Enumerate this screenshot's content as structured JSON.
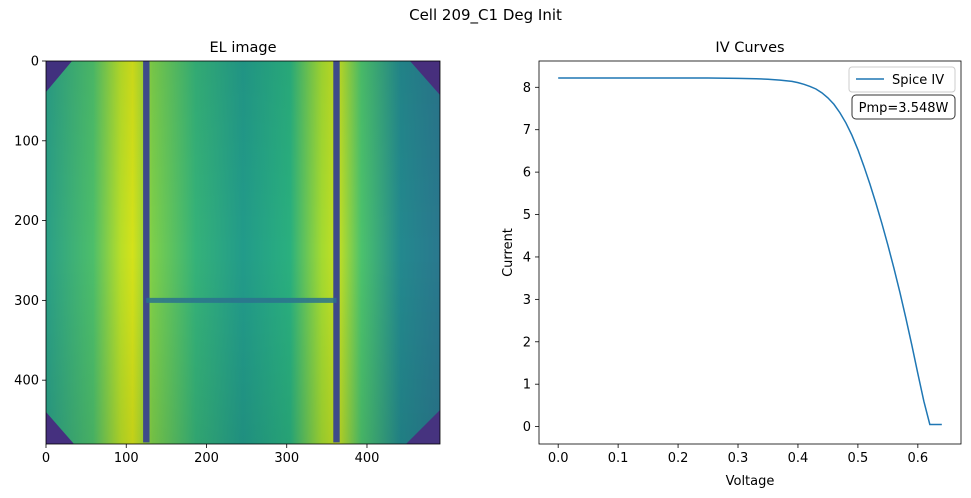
{
  "figure": {
    "title": "Cell 209_C1 Deg Init"
  },
  "chart_data": [
    {
      "type": "heatmap",
      "title": "EL image",
      "xlabel": "",
      "ylabel": "",
      "x_ticks": [
        0,
        100,
        200,
        300,
        400
      ],
      "y_ticks": [
        0,
        100,
        200,
        300,
        400
      ],
      "xlim": [
        0,
        491
      ],
      "ylim": [
        480,
        0
      ],
      "colormap": "viridis",
      "busbar_columns": [
        125,
        362
      ],
      "crack_row": 300
    },
    {
      "type": "line",
      "title": "IV Curves",
      "xlabel": "Voltage",
      "ylabel": "Current",
      "xlim": [
        -0.032,
        0.672
      ],
      "ylim": [
        -0.41,
        8.62
      ],
      "x_ticks": [
        "0.0",
        "0.1",
        "0.2",
        "0.3",
        "0.4",
        "0.5",
        "0.6"
      ],
      "y_ticks": [
        "0",
        "1",
        "2",
        "3",
        "4",
        "5",
        "6",
        "7",
        "8"
      ],
      "legend_position": "top-right",
      "annotation": "Pmp=3.548W",
      "series": [
        {
          "name": "Spice IV",
          "color": "#1f77b4",
          "x": [
            0.0,
            0.05,
            0.1,
            0.15,
            0.2,
            0.25,
            0.3,
            0.33,
            0.35,
            0.37,
            0.39,
            0.4,
            0.41,
            0.42,
            0.43,
            0.44,
            0.45,
            0.46,
            0.47,
            0.48,
            0.49,
            0.5,
            0.51,
            0.52,
            0.53,
            0.54,
            0.55,
            0.56,
            0.57,
            0.58,
            0.59,
            0.6,
            0.61,
            0.62,
            0.628,
            0.64
          ],
          "y": [
            8.22,
            8.22,
            8.22,
            8.22,
            8.22,
            8.22,
            8.21,
            8.2,
            8.19,
            8.17,
            8.14,
            8.11,
            8.07,
            8.02,
            7.96,
            7.87,
            7.75,
            7.6,
            7.4,
            7.16,
            6.87,
            6.53,
            6.14,
            5.72,
            5.27,
            4.79,
            4.28,
            3.74,
            3.17,
            2.56,
            1.92,
            1.25,
            0.6,
            0.05,
            0.05,
            0.05
          ]
        }
      ]
    }
  ]
}
